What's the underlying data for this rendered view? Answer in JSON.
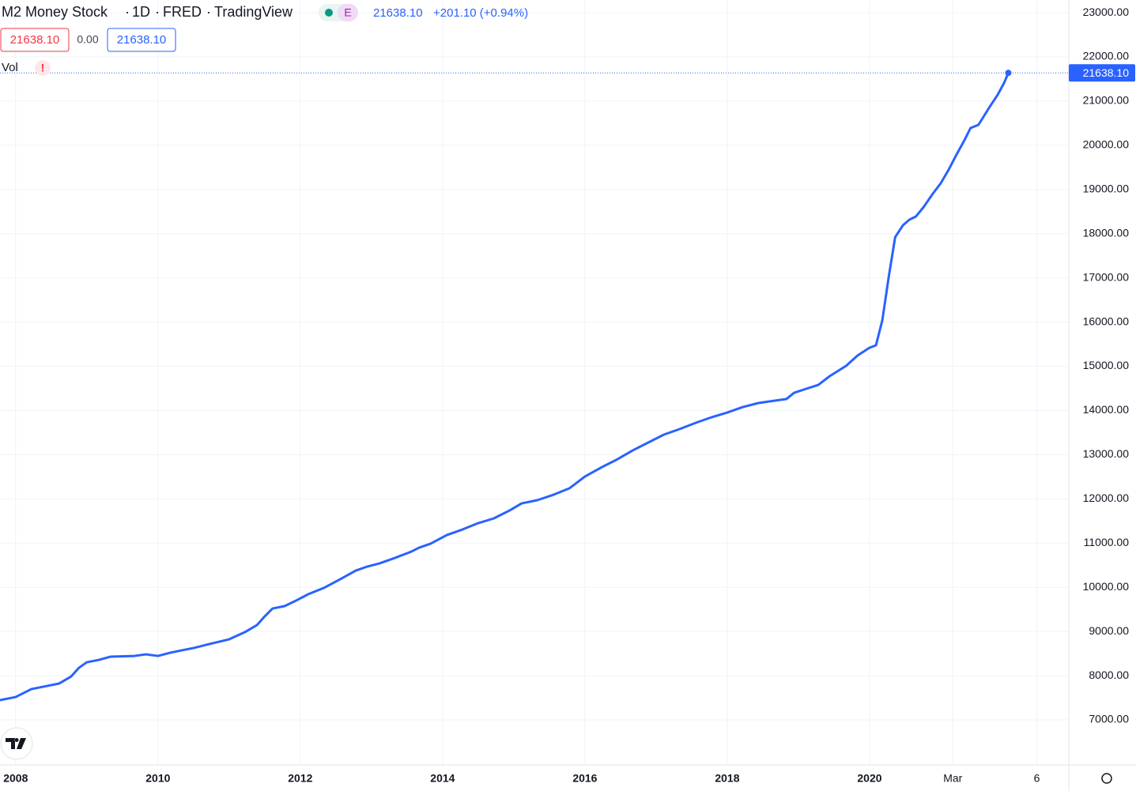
{
  "chart_data": {
    "type": "line",
    "title": "M2 Money Stock",
    "interval": "1D",
    "source": "FRED",
    "publisher": "TradingView",
    "badge": "E",
    "last_price": "21638.10",
    "change": "+201.10 (+0.94%)",
    "price_boxes": [
      "21638.10",
      "0.00",
      "21638.10"
    ],
    "indicator": "Vol",
    "indicator_alert": "!",
    "price_label": "21638.10",
    "color": "#2962ff",
    "grid": true,
    "xlim": [
      2007.78,
      2022.8
    ],
    "ylim": [
      5981,
      23287
    ],
    "xticks": [
      2008,
      2010,
      2012,
      2014,
      2016,
      2018,
      2020,
      {
        "value": 2021.17,
        "label": "Mar"
      },
      {
        "value": 2022.35,
        "label": "6"
      }
    ],
    "yticks": [
      {
        "value": 7000,
        "label": "7000.00"
      },
      {
        "value": 8000,
        "label": "8000.00"
      },
      {
        "value": 9000,
        "label": "9000.00"
      },
      {
        "value": 10000,
        "label": "10000.00"
      },
      {
        "value": 11000,
        "label": "11000.00"
      },
      {
        "value": 12000,
        "label": "12000.00"
      },
      {
        "value": 13000,
        "label": "13000.00"
      },
      {
        "value": 14000,
        "label": "14000.00"
      },
      {
        "value": 15000,
        "label": "15000.00"
      },
      {
        "value": 16000,
        "label": "16000.00"
      },
      {
        "value": 17000,
        "label": "17000.00"
      },
      {
        "value": 18000,
        "label": "18000.00"
      },
      {
        "value": 19000,
        "label": "19000.00"
      },
      {
        "value": 20000,
        "label": "20000.00"
      },
      {
        "value": 21000,
        "label": "21000.00"
      },
      {
        "value": 22000,
        "label": "22000.00"
      },
      {
        "value": 23000,
        "label": "23000.00"
      }
    ],
    "x": [
      2007.78,
      2008.0,
      2008.22,
      2008.44,
      2008.61,
      2008.78,
      2008.89,
      2009.0,
      2009.17,
      2009.33,
      2009.67,
      2009.83,
      2010.0,
      2010.17,
      2010.33,
      2010.5,
      2010.72,
      2011.0,
      2011.22,
      2011.39,
      2011.5,
      2011.61,
      2011.78,
      2011.94,
      2012.11,
      2012.33,
      2012.56,
      2012.78,
      2012.94,
      2013.11,
      2013.33,
      2013.56,
      2013.67,
      2013.83,
      2014.06,
      2014.28,
      2014.5,
      2014.72,
      2014.94,
      2015.11,
      2015.33,
      2015.56,
      2015.78,
      2016.0,
      2016.22,
      2016.44,
      2016.67,
      2016.89,
      2017.11,
      2017.33,
      2017.56,
      2017.78,
      2018.0,
      2018.22,
      2018.44,
      2018.67,
      2018.83,
      2018.94,
      2019.11,
      2019.28,
      2019.44,
      2019.67,
      2019.83,
      2020.0,
      2020.09,
      2020.18,
      2020.27,
      2020.36,
      2020.47,
      2020.56,
      2020.65,
      2020.76,
      2020.89,
      2021.0,
      2021.11,
      2021.22,
      2021.33,
      2021.42,
      2021.53,
      2021.6,
      2021.69,
      2021.8,
      2021.89,
      2021.95
    ],
    "values": [
      7446,
      7517,
      7696,
      7768,
      7822,
      7983,
      8179,
      8304,
      8358,
      8430,
      8447,
      8483,
      8447,
      8519,
      8572,
      8626,
      8715,
      8823,
      8984,
      9144,
      9341,
      9520,
      9574,
      9699,
      9842,
      9985,
      10182,
      10378,
      10468,
      10539,
      10664,
      10807,
      10897,
      10986,
      11183,
      11308,
      11451,
      11559,
      11737,
      11898,
      11970,
      12095,
      12238,
      12506,
      12703,
      12882,
      13096,
      13275,
      13454,
      13579,
      13722,
      13847,
      13954,
      14079,
      14169,
      14222,
      14258,
      14401,
      14491,
      14580,
      14777,
      15009,
      15242,
      15420,
      15474,
      16046,
      17030,
      17923,
      18192,
      18317,
      18388,
      18603,
      18907,
      19139,
      19443,
      19783,
      20105,
      20391,
      20462,
      20641,
      20874,
      21142,
      21410,
      21638.1
    ]
  }
}
